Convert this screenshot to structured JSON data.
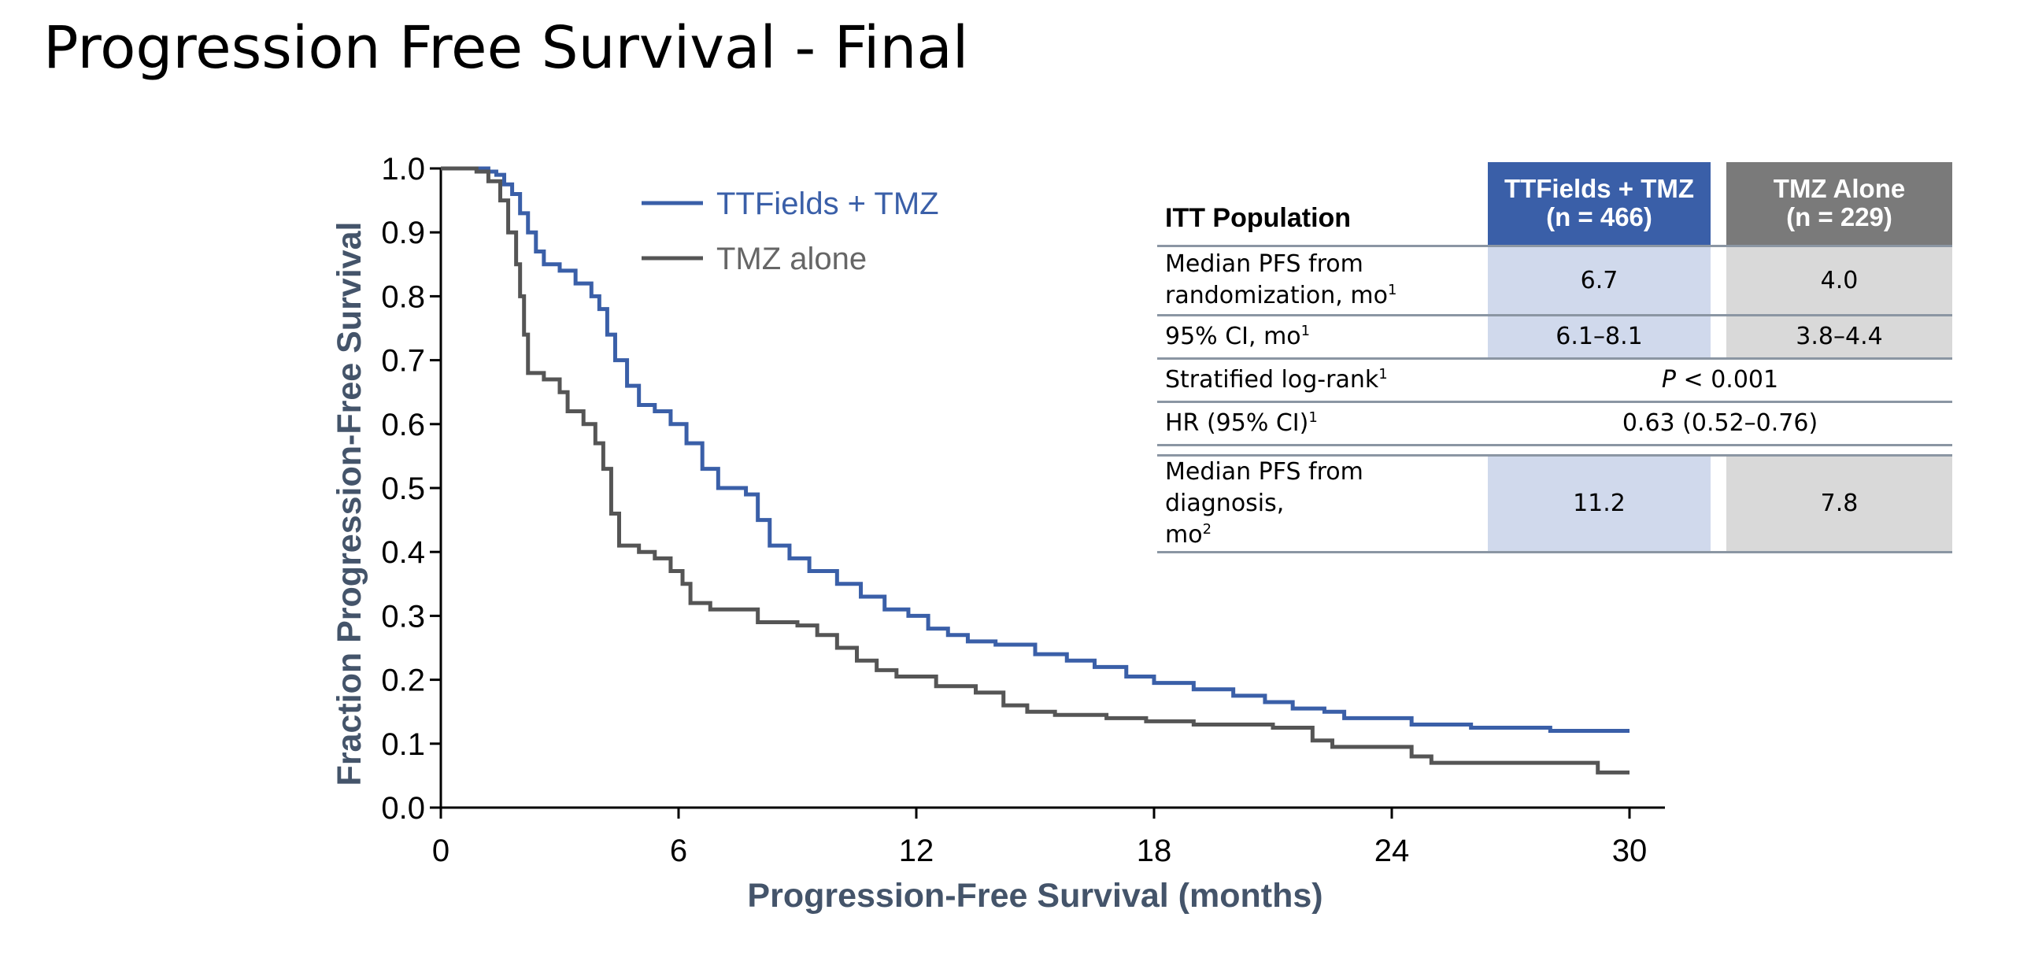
{
  "page_title": "Progression Free Survival - Final",
  "colors": {
    "ttfields": "#3a5fa8",
    "tmz": "#555555",
    "axis_title": "#44546a"
  },
  "chart_data": {
    "type": "line",
    "step": true,
    "xlabel": "Progression-Free Survival (months)",
    "ylabel": "Fraction Progression-Free Survival",
    "xlim": [
      0,
      30
    ],
    "ylim": [
      0,
      1.0
    ],
    "x_ticks": [
      "0",
      "6",
      "12",
      "18",
      "24",
      "30"
    ],
    "y_ticks": [
      "0.0",
      "0.1",
      "0.2",
      "0.3",
      "0.4",
      "0.5",
      "0.6",
      "0.7",
      "0.8",
      "0.9",
      "1.0"
    ],
    "legend": "top-left",
    "grid": false,
    "series": [
      {
        "name": "TTFields + TMZ",
        "color": "#3a5fa8",
        "points": [
          [
            0,
            1.0
          ],
          [
            1,
            1.0
          ],
          [
            1.2,
            0.995
          ],
          [
            1.4,
            0.99
          ],
          [
            1.6,
            0.975
          ],
          [
            1.8,
            0.96
          ],
          [
            2.0,
            0.93
          ],
          [
            2.2,
            0.9
          ],
          [
            2.4,
            0.87
          ],
          [
            2.6,
            0.85
          ],
          [
            3.0,
            0.84
          ],
          [
            3.4,
            0.82
          ],
          [
            3.8,
            0.8
          ],
          [
            4.0,
            0.78
          ],
          [
            4.2,
            0.74
          ],
          [
            4.4,
            0.7
          ],
          [
            4.7,
            0.66
          ],
          [
            5.0,
            0.63
          ],
          [
            5.4,
            0.62
          ],
          [
            5.8,
            0.6
          ],
          [
            6.2,
            0.57
          ],
          [
            6.6,
            0.53
          ],
          [
            7.0,
            0.5
          ],
          [
            7.4,
            0.5
          ],
          [
            7.7,
            0.49
          ],
          [
            8.0,
            0.45
          ],
          [
            8.3,
            0.41
          ],
          [
            8.8,
            0.39
          ],
          [
            9.3,
            0.37
          ],
          [
            10.0,
            0.35
          ],
          [
            10.6,
            0.33
          ],
          [
            11.2,
            0.31
          ],
          [
            11.8,
            0.3
          ],
          [
            12.3,
            0.28
          ],
          [
            12.8,
            0.27
          ],
          [
            13.3,
            0.26
          ],
          [
            14.0,
            0.255
          ],
          [
            15.0,
            0.24
          ],
          [
            15.8,
            0.23
          ],
          [
            16.5,
            0.22
          ],
          [
            17.3,
            0.205
          ],
          [
            18.0,
            0.195
          ],
          [
            19.0,
            0.185
          ],
          [
            20.0,
            0.175
          ],
          [
            20.8,
            0.165
          ],
          [
            21.5,
            0.155
          ],
          [
            22.3,
            0.15
          ],
          [
            22.8,
            0.14
          ],
          [
            24.5,
            0.13
          ],
          [
            26.0,
            0.125
          ],
          [
            28.0,
            0.12
          ],
          [
            30.0,
            0.12
          ]
        ]
      },
      {
        "name": "TMZ alone",
        "color": "#555555",
        "points": [
          [
            0,
            1.0
          ],
          [
            0.9,
            0.995
          ],
          [
            1.2,
            0.98
          ],
          [
            1.5,
            0.95
          ],
          [
            1.7,
            0.9
          ],
          [
            1.9,
            0.85
          ],
          [
            2.0,
            0.8
          ],
          [
            2.1,
            0.74
          ],
          [
            2.2,
            0.68
          ],
          [
            2.6,
            0.67
          ],
          [
            3.0,
            0.65
          ],
          [
            3.2,
            0.62
          ],
          [
            3.6,
            0.6
          ],
          [
            3.9,
            0.57
          ],
          [
            4.1,
            0.53
          ],
          [
            4.3,
            0.46
          ],
          [
            4.5,
            0.41
          ],
          [
            5.0,
            0.4
          ],
          [
            5.4,
            0.39
          ],
          [
            5.8,
            0.37
          ],
          [
            6.1,
            0.35
          ],
          [
            6.3,
            0.32
          ],
          [
            6.8,
            0.31
          ],
          [
            7.6,
            0.31
          ],
          [
            8.0,
            0.29
          ],
          [
            9.0,
            0.285
          ],
          [
            9.5,
            0.27
          ],
          [
            10.0,
            0.25
          ],
          [
            10.5,
            0.23
          ],
          [
            11.0,
            0.215
          ],
          [
            11.5,
            0.205
          ],
          [
            12.5,
            0.19
          ],
          [
            13.5,
            0.18
          ],
          [
            14.2,
            0.16
          ],
          [
            14.8,
            0.15
          ],
          [
            15.5,
            0.145
          ],
          [
            16.8,
            0.14
          ],
          [
            17.8,
            0.135
          ],
          [
            19.0,
            0.13
          ],
          [
            21.0,
            0.125
          ],
          [
            22.0,
            0.105
          ],
          [
            22.5,
            0.095
          ],
          [
            24.5,
            0.08
          ],
          [
            25.0,
            0.07
          ],
          [
            29.2,
            0.055
          ],
          [
            30.0,
            0.055
          ]
        ]
      }
    ]
  },
  "table": {
    "header": {
      "label": "ITT Population",
      "tt_line1": "TTFields + TMZ",
      "tt_line2": "(n = 466)",
      "tmz_line1": "TMZ Alone",
      "tmz_line2": "(n = 229)"
    },
    "median_pfs_rand": {
      "label_line1": "Median PFS from",
      "label_line2": "randomization, mo",
      "sup": "1",
      "tt": "6.7",
      "tmz": "4.0"
    },
    "ci": {
      "label": "95% CI, mo",
      "sup": "1",
      "tt": "6.1–8.1",
      "tmz": "3.8–4.4"
    },
    "logrank": {
      "label": "Stratified log-rank",
      "sup": "1",
      "p_letter": "P",
      "value": " < 0.001"
    },
    "hr": {
      "label": "HR (95% CI)",
      "sup": "1",
      "value": "0.63 (0.52–0.76)"
    },
    "median_pfs_diag": {
      "label_line1": "Median PFS from diagnosis,",
      "label_line2": "mo",
      "sup": "2",
      "tt": "11.2",
      "tmz": "7.8"
    }
  }
}
